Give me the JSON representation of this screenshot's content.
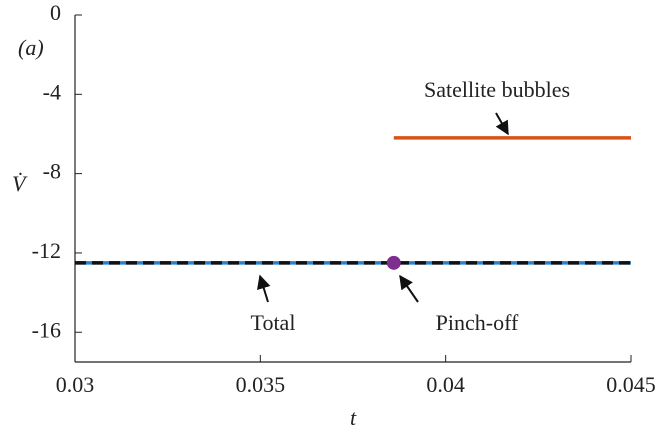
{
  "chart_data": {
    "type": "line",
    "xlabel": "t",
    "ylabel": "V̇",
    "panel_label": "(a)",
    "xlim": [
      0.03,
      0.045
    ],
    "xticks": [
      0.03,
      0.035,
      0.04,
      0.045
    ],
    "ylim": [
      -17.5,
      0
    ],
    "yticks": [
      0,
      -4,
      -8,
      -12,
      -16
    ],
    "series": [
      {
        "color": "#2b7fd0",
        "style": "solid",
        "x": [
          0.03,
          0.045
        ],
        "values": [
          -12.5,
          -12.5
        ]
      },
      {
        "name": "Total",
        "color": "#111111",
        "style": "dashed",
        "x": [
          0.03,
          0.045
        ],
        "values": [
          -12.5,
          -12.5
        ]
      },
      {
        "name": "Satellite bubbles",
        "color": "#d95319",
        "style": "solid",
        "x": [
          0.0386,
          0.045
        ],
        "values": [
          -6.2,
          -6.2
        ]
      },
      {
        "name": "Pinch-off",
        "color": "#7e2f8e",
        "style": "marker",
        "x": [
          0.0386
        ],
        "values": [
          -12.5
        ]
      }
    ]
  }
}
